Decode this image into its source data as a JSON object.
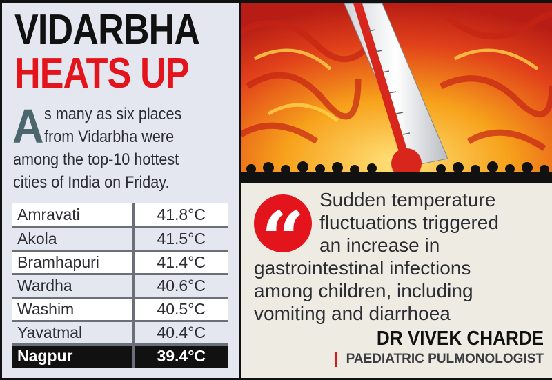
{
  "headline": {
    "line1": "VIDARBHA",
    "line2": "HEATS UP"
  },
  "intro": {
    "dropcap": "A",
    "line1": "s many as six places",
    "line2": "from Vidarbha were",
    "line3": "among the top-10 hottest",
    "line4": "cities of India on Friday."
  },
  "table": {
    "rows": [
      {
        "city": "Amravati",
        "temp": "41.8°C"
      },
      {
        "city": "Akola",
        "temp": "41.5°C"
      },
      {
        "city": "Bramhapuri",
        "temp": "41.4°C"
      },
      {
        "city": "Wardha",
        "temp": "40.6°C"
      },
      {
        "city": "Washim",
        "temp": "40.5°C"
      },
      {
        "city": "Yavatmal",
        "temp": "40.4°C"
      },
      {
        "city": "Nagpur",
        "temp": "39.4°C",
        "highlight": true
      }
    ]
  },
  "quote": {
    "icon": "quote-mark-icon",
    "mark": "“",
    "lines": [
      "Sudden temperature",
      "fluctuations triggered",
      "an increase in",
      "gastrointestinal infections",
      "among children, including",
      "vomiting and diarrhoea"
    ],
    "author": "DR VIVEK CHARDE",
    "role": "PAEDIATRIC PULMONOLOGIST"
  },
  "colors": {
    "accent": "#e3141b",
    "panel": "#e4e7ef",
    "quote_bg": "#eeebe3"
  },
  "image": {
    "icon": "thermometer-heat-illustration"
  }
}
